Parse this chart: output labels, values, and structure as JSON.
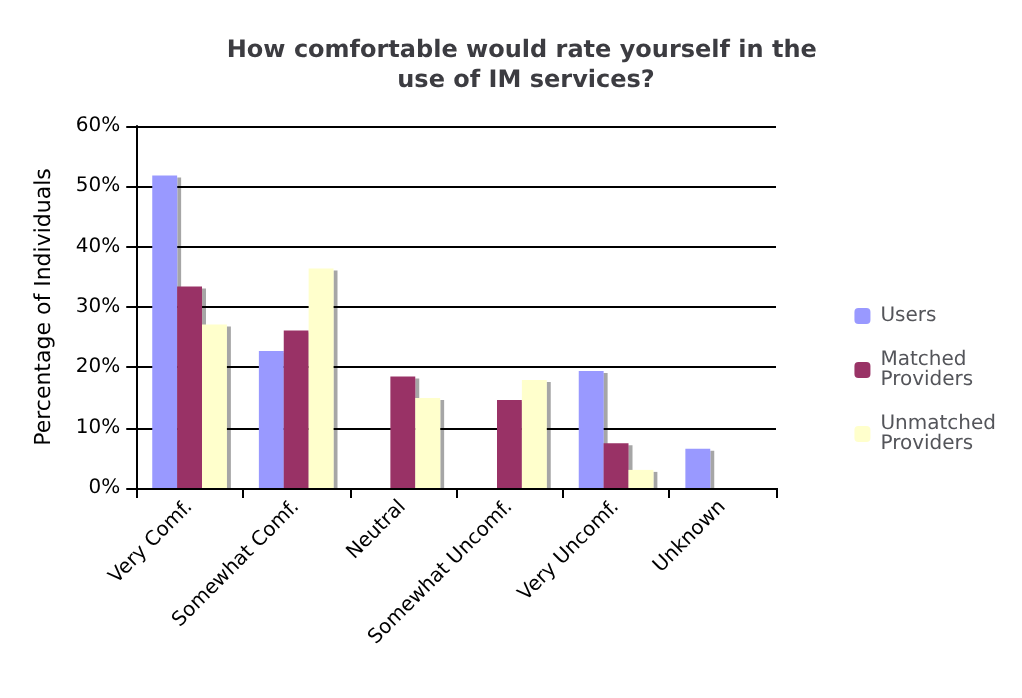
{
  "chart_data": {
    "type": "bar",
    "title": "How comfortable would rate yourself in the use of IM services?",
    "ylabel": "Percentage of Individuals",
    "categories": [
      "Very Comf.",
      "Somewhat Comf.",
      "Neutral",
      "Somewhat Uncomf.",
      "Very Uncomf.",
      "Unknown"
    ],
    "series": [
      {
        "name": "Users",
        "color": "#9999ff",
        "values": [
          51.8,
          22.7,
          0,
          0,
          19.4,
          6.5
        ]
      },
      {
        "name": "Matched Providers",
        "color": "#993366",
        "values": [
          33.4,
          26.1,
          18.5,
          14.6,
          7.4,
          0
        ]
      },
      {
        "name": "Unmatched Providers",
        "color": "#ffffcc",
        "values": [
          27.1,
          36.4,
          14.9,
          17.9,
          3.0,
          0
        ]
      }
    ],
    "ylim": [
      0,
      60
    ],
    "yticks": [
      {
        "value": 0,
        "label": "0%"
      },
      {
        "value": 10,
        "label": "10%"
      },
      {
        "value": 20,
        "label": "20%"
      },
      {
        "value": 30,
        "label": "30%"
      },
      {
        "value": 40,
        "label": "40%"
      },
      {
        "value": 50,
        "label": "50%"
      },
      {
        "value": 60,
        "label": "60%"
      }
    ],
    "grid": "y",
    "legend": "right"
  }
}
